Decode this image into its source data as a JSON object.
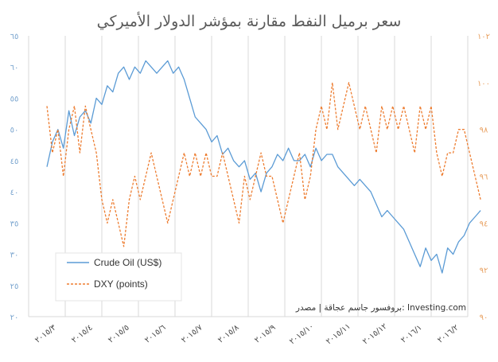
{
  "title": "سعر برميل النفط مقارنة بمؤشر الدولار الأميركي",
  "source": "بروفسور جاسم عجاقة | مصدر: Investing.com",
  "colors": {
    "oil": "#5b9bd5",
    "dxy": "#ed7d31",
    "grid": "#d9d9d9",
    "title": "#5a5a5a"
  },
  "chart_data": {
    "type": "line",
    "title": "سعر برميل النفط مقارنة بمؤشر الدولار الأميركي",
    "xlabel": "",
    "ylabel": "",
    "x_tick_labels": [
      "٢٠١٥/٣",
      "٢٠١٥/٤",
      "٢٠١٥/٥",
      "٢٠١٥/٦",
      "٢٠١٥/٧",
      "٢٠١٥/٨",
      "٢٠١٥/٩",
      "٢٠١٥/١٠",
      "٢٠١٥/١١",
      "٢٠١٥/١٢",
      "٢٠١٦/١",
      "٢٠١٦/٢"
    ],
    "y_left": {
      "ylim": [
        20,
        65
      ],
      "tick_labels": [
        "٢٠",
        "٢٥",
        "٣٠",
        "٣٥",
        "٤٠",
        "٤٥",
        "٥٠",
        "٥٥",
        "٦٠",
        "٦٥"
      ]
    },
    "y_right": {
      "ylim": [
        90,
        102
      ],
      "tick_labels": [
        "٩٠",
        "٩٢",
        "٩٤",
        "٩٦",
        "٩٨",
        "١٠٠",
        "١٠٢"
      ]
    },
    "grid": "vertical",
    "legend_position": "bottom-left",
    "series": [
      {
        "name": "Crude Oil (US$)",
        "axis": "left",
        "style": "solid",
        "x": [
          0,
          0.15,
          0.3,
          0.45,
          0.6,
          0.75,
          0.9,
          1.05,
          1.2,
          1.35,
          1.5,
          1.65,
          1.8,
          1.95,
          2.1,
          2.25,
          2.4,
          2.55,
          2.7,
          2.85,
          3.0,
          3.15,
          3.3,
          3.45,
          3.6,
          3.75,
          3.9,
          4.05,
          4.2,
          4.35,
          4.5,
          4.65,
          4.8,
          4.95,
          5.1,
          5.25,
          5.4,
          5.55,
          5.7,
          5.85,
          6.0,
          6.15,
          6.3,
          6.45,
          6.6,
          6.75,
          6.9,
          7.05,
          7.2,
          7.35,
          7.5,
          7.65,
          7.8,
          7.95,
          8.1,
          8.25,
          8.4,
          8.55,
          8.7,
          8.85,
          9.0,
          9.15,
          9.3,
          9.45,
          9.6,
          9.75,
          9.9,
          10.05,
          10.2,
          10.35,
          10.5,
          10.65,
          10.8,
          10.95,
          11.1,
          11.25,
          11.4,
          11.55,
          11.7,
          11.85
        ],
        "values": [
          44,
          48,
          50,
          47,
          53,
          49,
          52,
          53,
          51,
          55,
          54,
          57,
          56,
          59,
          60,
          58,
          60,
          59,
          61,
          60,
          59,
          60,
          61,
          59,
          60,
          58,
          55,
          52,
          51,
          50,
          48,
          49,
          46,
          47,
          45,
          44,
          45,
          42,
          43,
          40,
          43,
          44,
          46,
          45,
          47,
          45,
          45,
          46,
          44,
          47,
          45,
          46,
          46,
          44,
          43,
          42,
          41,
          42,
          41,
          40,
          38,
          36,
          37,
          36,
          35,
          34,
          32,
          30,
          28,
          31,
          29,
          30,
          27,
          31,
          30,
          32,
          33,
          35,
          36,
          37
        ]
      },
      {
        "name": "DXY (points)",
        "axis": "right",
        "style": "dashed",
        "x": [
          0,
          0.15,
          0.3,
          0.45,
          0.6,
          0.75,
          0.9,
          1.05,
          1.2,
          1.35,
          1.5,
          1.65,
          1.8,
          1.95,
          2.1,
          2.25,
          2.4,
          2.55,
          2.7,
          2.85,
          3.0,
          3.15,
          3.3,
          3.45,
          3.6,
          3.75,
          3.9,
          4.05,
          4.2,
          4.35,
          4.5,
          4.65,
          4.8,
          4.95,
          5.1,
          5.25,
          5.4,
          5.55,
          5.7,
          5.85,
          6.0,
          6.15,
          6.3,
          6.45,
          6.6,
          6.75,
          6.9,
          7.05,
          7.2,
          7.35,
          7.5,
          7.65,
          7.8,
          7.95,
          8.1,
          8.25,
          8.4,
          8.55,
          8.7,
          8.85,
          9.0,
          9.15,
          9.3,
          9.45,
          9.6,
          9.75,
          9.9,
          10.05,
          10.2,
          10.35,
          10.5,
          10.65,
          10.8,
          10.95,
          11.1,
          11.25,
          11.4,
          11.55,
          11.7,
          11.85
        ],
        "values": [
          99,
          97,
          98,
          96,
          98,
          99,
          97,
          99,
          98,
          97,
          95,
          94,
          95,
          94,
          93,
          95,
          96,
          95,
          96,
          97,
          96,
          95,
          94,
          95,
          96,
          97,
          96,
          97,
          96,
          97,
          96,
          96,
          97,
          96,
          95,
          94,
          96,
          95,
          96,
          97,
          96,
          96,
          95,
          94,
          95,
          96,
          97,
          95,
          96,
          98,
          99,
          98,
          100,
          98,
          99,
          100,
          99,
          98,
          99,
          98,
          97,
          99,
          98,
          99,
          98,
          99,
          98,
          97,
          99,
          98,
          99,
          97,
          96,
          97,
          97,
          98,
          98,
          97,
          96,
          95
        ]
      }
    ]
  }
}
